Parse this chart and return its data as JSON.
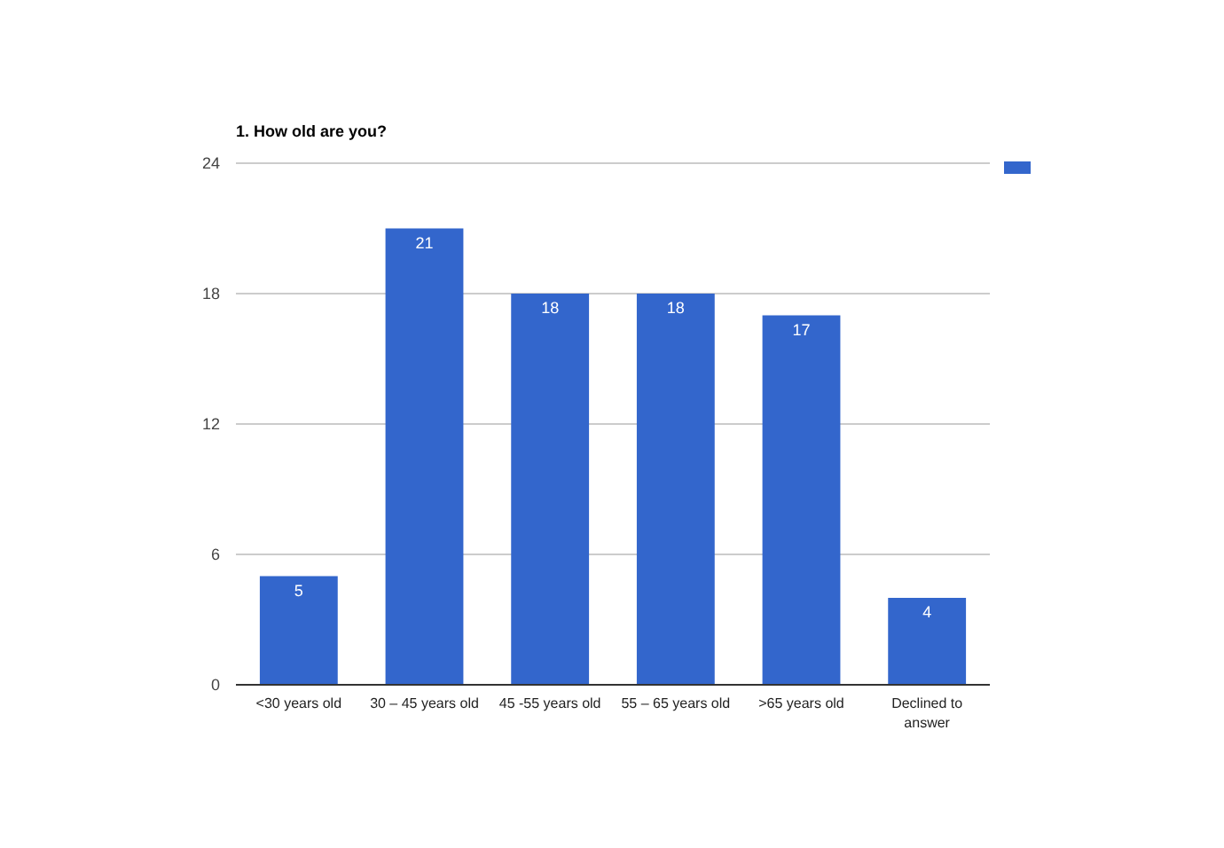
{
  "chart_data": {
    "type": "bar",
    "title": "1. How old are you?",
    "categories": [
      "<30 years old",
      "30 – 45 years old",
      "45 -55 years old",
      "55 – 65 years old",
      ">65 years old",
      "Declined to answer"
    ],
    "series": [
      {
        "color": "#3366cc",
        "values": [
          5,
          21,
          18,
          18,
          17,
          4
        ]
      }
    ],
    "ylim": [
      0,
      24
    ],
    "yticks": [
      0,
      6,
      12,
      18,
      24
    ],
    "grid": "y",
    "data_labels": true
  }
}
